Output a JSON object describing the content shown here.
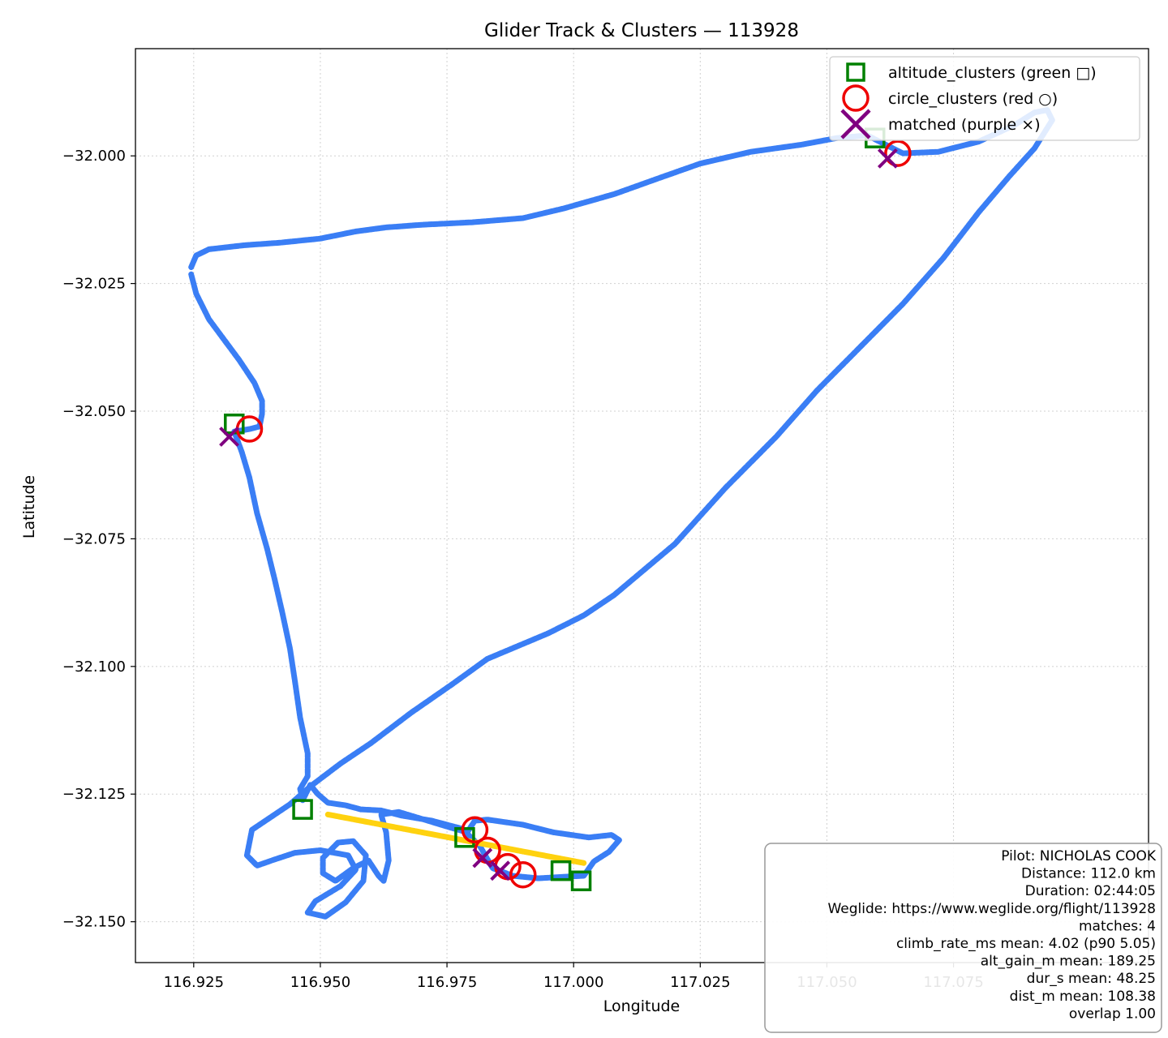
{
  "chart_data": {
    "type": "line",
    "title": "Glider Track & Clusters — 113928",
    "xlabel": "Longitude",
    "ylabel": "Latitude",
    "xlim": [
      116.9135,
      117.1135
    ],
    "ylim": [
      -32.158,
      -31.979
    ],
    "xticks": [
      116.925,
      116.95,
      116.975,
      117.0,
      117.025,
      117.05,
      117.075
    ],
    "xtick_labels": [
      "116.925",
      "116.950",
      "116.975",
      "117.000",
      "117.025",
      "117.050",
      "117.075"
    ],
    "yticks": [
      -32.0,
      -32.025,
      -32.05,
      -32.075,
      -32.1,
      -32.125,
      -32.15
    ],
    "ytick_labels": [
      "−32.000",
      "−32.025",
      "−32.050",
      "−32.075",
      "−32.100",
      "−32.125",
      "−32.150"
    ],
    "grid": true,
    "legend_position": "top-right",
    "colors": {
      "track": "#3a7ef5",
      "climb": "#ffd20f",
      "altitude_clusters": "#008000",
      "circle_clusters": "#ee0000",
      "matched": "#800080"
    },
    "series": [
      {
        "type": "line",
        "color": "#3a7ef5",
        "points": [
          [
            116.9245,
            -32.0218
          ],
          [
            116.9255,
            -32.0195
          ],
          [
            116.928,
            -32.0183
          ],
          [
            116.935,
            -32.0175
          ],
          [
            116.942,
            -32.017
          ],
          [
            116.95,
            -32.0162
          ],
          [
            116.957,
            -32.0148
          ],
          [
            116.963,
            -32.014
          ],
          [
            116.97,
            -32.0135
          ],
          [
            116.98,
            -32.013
          ],
          [
            116.99,
            -32.0122
          ],
          [
            116.998,
            -32.0103
          ],
          [
            117.008,
            -32.0075
          ],
          [
            117.017,
            -32.0043
          ],
          [
            117.025,
            -32.0015
          ],
          [
            117.035,
            -31.9992
          ],
          [
            117.045,
            -31.9978
          ],
          [
            117.052,
            -31.9965
          ],
          [
            117.058,
            -31.996
          ],
          [
            117.065,
            -31.9995
          ],
          [
            117.072,
            -31.9992
          ],
          [
            117.08,
            -31.9972
          ],
          [
            117.087,
            -31.994
          ],
          [
            117.091,
            -31.9915
          ],
          [
            117.0935,
            -31.991
          ],
          [
            117.0945,
            -31.993
          ],
          [
            117.091,
            -31.9985
          ],
          [
            117.086,
            -32.004
          ],
          [
            117.08,
            -32.011
          ],
          [
            117.073,
            -32.02
          ],
          [
            117.065,
            -32.029
          ],
          [
            117.055,
            -32.039
          ],
          [
            117.048,
            -32.046
          ],
          [
            117.04,
            -32.055
          ],
          [
            117.03,
            -32.065
          ],
          [
            117.02,
            -32.076
          ],
          [
            117.008,
            -32.086
          ],
          [
            117.002,
            -32.09
          ],
          [
            116.995,
            -32.0935
          ],
          [
            116.983,
            -32.0985
          ],
          [
            116.976,
            -32.1035
          ],
          [
            116.968,
            -32.109
          ],
          [
            116.96,
            -32.115
          ],
          [
            116.954,
            -32.119
          ],
          [
            116.948,
            -32.1235
          ],
          [
            116.944,
            -32.127
          ],
          [
            116.9365,
            -32.132
          ],
          [
            116.9355,
            -32.137
          ],
          [
            116.9375,
            -32.139
          ],
          [
            116.941,
            -32.1378
          ],
          [
            116.945,
            -32.1365
          ],
          [
            116.95,
            -32.136
          ],
          [
            116.9555,
            -32.137
          ],
          [
            116.957,
            -32.1398
          ],
          [
            116.954,
            -32.143
          ],
          [
            116.949,
            -32.146
          ],
          [
            116.9475,
            -32.1482
          ],
          [
            116.951,
            -32.149
          ],
          [
            116.955,
            -32.1462
          ],
          [
            116.9585,
            -32.142
          ],
          [
            116.959,
            -32.137
          ],
          [
            116.9565,
            -32.1342
          ],
          [
            116.9535,
            -32.1345
          ],
          [
            116.9505,
            -32.1375
          ],
          [
            116.9505,
            -32.1405
          ],
          [
            116.953,
            -32.142
          ],
          [
            116.9565,
            -32.1395
          ],
          [
            116.9595,
            -32.138
          ],
          [
            116.9615,
            -32.141
          ],
          [
            116.9625,
            -32.142
          ],
          [
            116.9635,
            -32.138
          ],
          [
            116.963,
            -32.1325
          ],
          [
            116.962,
            -32.129
          ],
          [
            116.9655,
            -32.1285
          ],
          [
            116.9705,
            -32.13
          ],
          [
            116.9755,
            -32.1315
          ],
          [
            116.979,
            -32.1325
          ],
          [
            116.9805,
            -32.1302
          ],
          [
            116.983,
            -32.13
          ],
          [
            116.99,
            -32.131
          ],
          [
            116.996,
            -32.1325
          ],
          [
            117.003,
            -32.1335
          ],
          [
            117.0075,
            -32.133
          ],
          [
            117.009,
            -32.134
          ],
          [
            117.007,
            -32.1363
          ],
          [
            117.004,
            -32.1382
          ],
          [
            117.002,
            -32.141
          ],
          [
            116.998,
            -32.1412
          ],
          [
            116.993,
            -32.1415
          ],
          [
            116.988,
            -32.141
          ],
          [
            116.984,
            -32.1395
          ],
          [
            116.9815,
            -32.1352
          ],
          [
            116.978,
            -32.1318
          ],
          [
            116.972,
            -32.1302
          ],
          [
            116.966,
            -32.1292
          ],
          [
            116.962,
            -32.1282
          ],
          [
            116.958,
            -32.128
          ],
          [
            116.955,
            -32.1272
          ],
          [
            116.9515,
            -32.1267
          ],
          [
            116.9495,
            -32.125
          ],
          [
            116.948,
            -32.1232
          ],
          [
            116.9465,
            -32.1262
          ],
          [
            116.946,
            -32.124
          ],
          [
            116.9475,
            -32.1215
          ],
          [
            116.9475,
            -32.117
          ],
          [
            116.946,
            -32.11
          ],
          [
            116.945,
            -32.103
          ],
          [
            116.944,
            -32.0965
          ],
          [
            116.9425,
            -32.0895
          ],
          [
            116.941,
            -32.083
          ],
          [
            116.9395,
            -32.077
          ],
          [
            116.9375,
            -32.07
          ],
          [
            116.936,
            -32.063
          ],
          [
            116.9345,
            -32.058
          ],
          [
            116.933,
            -32.054
          ],
          [
            116.936,
            -32.0535
          ],
          [
            116.938,
            -32.053
          ],
          [
            116.9385,
            -32.0505
          ],
          [
            116.9385,
            -32.048
          ],
          [
            116.937,
            -32.0445
          ],
          [
            116.934,
            -32.04
          ],
          [
            116.931,
            -32.036
          ],
          [
            116.928,
            -32.032
          ],
          [
            116.9255,
            -32.027
          ],
          [
            116.9245,
            -32.0232
          ]
        ]
      },
      {
        "type": "line",
        "color": "#ffd20f",
        "points": [
          [
            116.9515,
            -32.129
          ],
          [
            117.002,
            -32.1385
          ]
        ]
      }
    ],
    "altitude_clusters": [
      [
        116.933,
        -32.0525
      ],
      [
        117.0595,
        -31.9965
      ],
      [
        116.9465,
        -32.128
      ],
      [
        116.9785,
        -32.1335
      ],
      [
        116.9975,
        -32.14
      ],
      [
        117.0015,
        -32.142
      ]
    ],
    "circle_clusters": [
      [
        116.936,
        -32.0535
      ],
      [
        117.064,
        -31.9995
      ],
      [
        116.9805,
        -32.132
      ],
      [
        116.983,
        -32.136
      ],
      [
        116.987,
        -32.1392
      ],
      [
        116.99,
        -32.1408
      ]
    ],
    "matched": [
      [
        116.932,
        -32.055
      ],
      [
        117.062,
        -32.0005
      ],
      [
        116.982,
        -32.1375
      ],
      [
        116.9855,
        -32.14
      ]
    ],
    "legend": [
      {
        "marker": "square",
        "label": "altitude_clusters (green □)"
      },
      {
        "marker": "circle",
        "label": "circle_clusters (red ○)"
      },
      {
        "marker": "cross",
        "label": "matched (purple ×)"
      }
    ],
    "info_box": [
      "Pilot: NICHOLAS COOK",
      "Distance: 112.0 km",
      "Duration: 02:44:05",
      "Weglide: https://www.weglide.org/flight/113928",
      "matches: 4",
      "climb_rate_ms mean: 4.02 (p90 5.05)",
      "alt_gain_m mean: 189.25",
      "dur_s mean: 48.25",
      "dist_m mean: 108.38",
      "overlap 1.00"
    ]
  }
}
